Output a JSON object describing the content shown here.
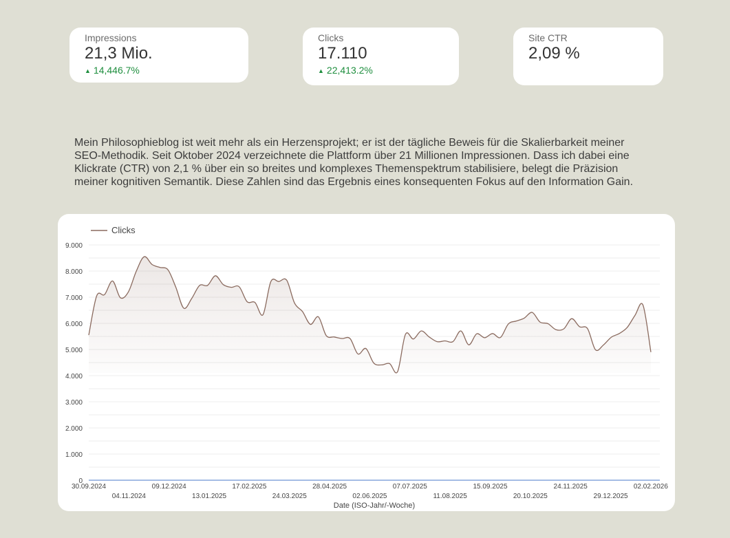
{
  "kpis": [
    {
      "label": "Impressions",
      "value": "21,3 Mio.",
      "delta": "14,446.7%"
    },
    {
      "label": "Clicks",
      "value": "17.110",
      "delta": "22,413.2%"
    },
    {
      "label": "Site CTR",
      "value": "2,09 %",
      "delta": ""
    }
  ],
  "intro_text": "Mein Philosophieblog ist weit mehr als ein Herzensprojekt; er ist der tägliche Beweis für die Skalierbarkeit meiner SEO-Methodik. Seit Oktober 2024 verzeichnete die Plattform über 21 Millionen Impressionen. Dass ich dabei eine Klickrate (CTR) von 2,1 % über ein so breites und komplexes Themenspektrum stabilisiere, belegt die Präzision meiner kognitiven Semantik. Diese Zahlen sind das Ergebnis eines konsequenten Fokus auf den Information Gain.",
  "colors": {
    "line": "#8a6a5e",
    "baseline": "#4a78c8",
    "delta": "#1e8e3e",
    "grid": "#ececec"
  },
  "chart_data": {
    "type": "area",
    "legend_position": "top-left",
    "grid": true,
    "xlabel": "Date (ISO-Jahr/-Woche)",
    "ylabel": "",
    "ylim": [
      0,
      9000
    ],
    "y_ticks": [
      "0",
      "1.000",
      "2.000",
      "3.000",
      "4.000",
      "5.000",
      "6.000",
      "7.000",
      "8.000",
      "9.000"
    ],
    "x_ticks_top": [
      "30.09.2024",
      "09.12.2024",
      "17.02.2025",
      "28.04.2025",
      "07.07.2025",
      "15.09.2025",
      "24.11.2025",
      "02.02.2026"
    ],
    "x_ticks_bottom": [
      "04.11.2024",
      "13.01.2025",
      "24.03.2025",
      "02.06.2025",
      "11.08.2025",
      "20.10.2025",
      "29.12.2025"
    ],
    "series": [
      {
        "name": "Clicks",
        "values": [
          5550,
          7050,
          7100,
          7620,
          6980,
          7200,
          7990,
          8550,
          8250,
          8140,
          8050,
          7380,
          6580,
          6950,
          7450,
          7450,
          7820,
          7480,
          7380,
          7400,
          6830,
          6800,
          6330,
          7600,
          7600,
          7650,
          6770,
          6450,
          5960,
          6250,
          5530,
          5480,
          5420,
          5420,
          4830,
          5040,
          4480,
          4410,
          4460,
          4150,
          5580,
          5400,
          5710,
          5480,
          5300,
          5330,
          5300,
          5710,
          5180,
          5600,
          5450,
          5610,
          5460,
          5980,
          6090,
          6200,
          6420,
          6050,
          5990,
          5760,
          5790,
          6180,
          5870,
          5800,
          4990,
          5170,
          5470,
          5610,
          5840,
          6310,
          6700,
          4900
        ]
      }
    ]
  }
}
